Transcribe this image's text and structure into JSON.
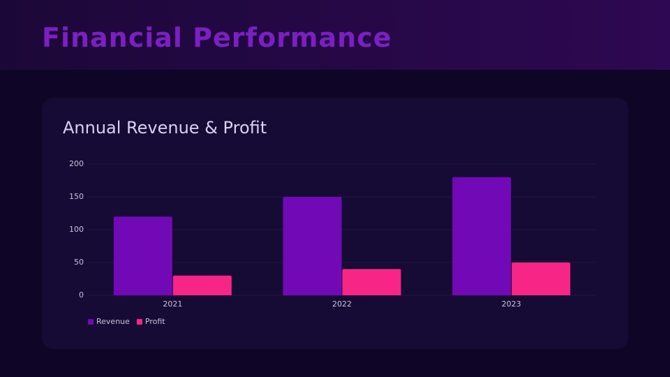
{
  "header": {
    "title": "Financial Performance"
  },
  "chart_data": {
    "type": "bar",
    "title": "Annual Revenue & Profit",
    "categories": [
      "2021",
      "2022",
      "2023"
    ],
    "series": [
      {
        "name": "Revenue",
        "color": "#7209b7",
        "values": [
          120,
          150,
          180
        ]
      },
      {
        "name": "Profit",
        "color": "#f72585",
        "values": [
          30,
          40,
          50
        ]
      }
    ],
    "ylim": [
      0,
      200
    ],
    "yticks": [
      0,
      50,
      100,
      150,
      200
    ],
    "grid": true,
    "legend": "bottom-left"
  }
}
